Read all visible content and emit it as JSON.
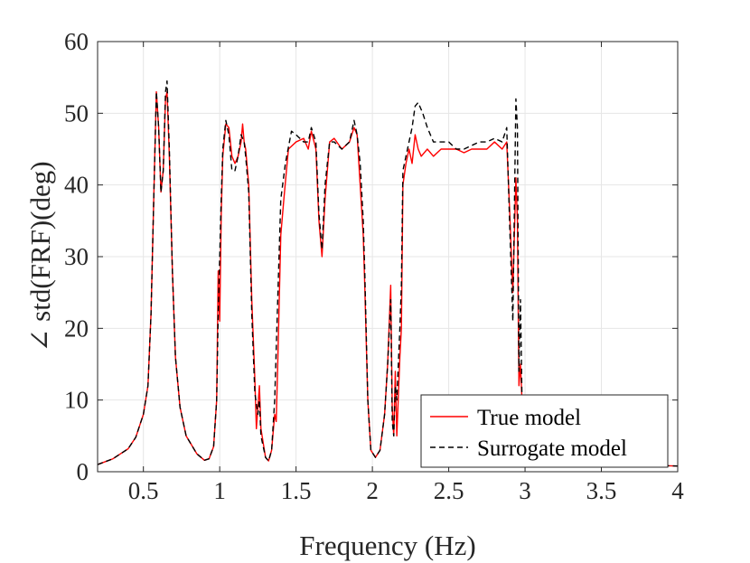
{
  "chart_data": {
    "type": "line",
    "title": "",
    "xlabel": "Frequency (Hz)",
    "ylabel": "∠ std(FRF)(deg)",
    "xlim": [
      0.2,
      4
    ],
    "ylim": [
      0,
      60
    ],
    "grid": true,
    "legend_position": "bottom-right",
    "x_ticks": [
      0.5,
      1,
      1.5,
      2,
      2.5,
      3,
      3.5,
      4
    ],
    "x_tick_labels": [
      "0.5",
      "1",
      "1.5",
      "2",
      "2.5",
      "3",
      "3.5",
      "4"
    ],
    "y_ticks": [
      0,
      10,
      20,
      30,
      40,
      50,
      60
    ],
    "y_tick_labels": [
      "0",
      "10",
      "20",
      "30",
      "40",
      "50",
      "60"
    ],
    "series": [
      {
        "name": "True model",
        "color": "#ff0000",
        "dash": "solid",
        "points": [
          [
            0.2,
            1.0
          ],
          [
            0.3,
            1.8
          ],
          [
            0.4,
            3.2
          ],
          [
            0.45,
            4.8
          ],
          [
            0.5,
            8
          ],
          [
            0.53,
            12
          ],
          [
            0.55,
            22
          ],
          [
            0.57,
            40
          ],
          [
            0.585,
            53
          ],
          [
            0.6,
            48
          ],
          [
            0.615,
            39
          ],
          [
            0.63,
            42
          ],
          [
            0.645,
            52
          ],
          [
            0.655,
            53
          ],
          [
            0.67,
            44
          ],
          [
            0.69,
            28
          ],
          [
            0.71,
            16
          ],
          [
            0.74,
            9
          ],
          [
            0.78,
            5
          ],
          [
            0.85,
            2.5
          ],
          [
            0.9,
            1.6
          ],
          [
            0.93,
            1.8
          ],
          [
            0.96,
            3.5
          ],
          [
            0.98,
            10
          ],
          [
            0.99,
            28
          ],
          [
            1.0,
            21
          ],
          [
            1.01,
            36
          ],
          [
            1.02,
            44
          ],
          [
            1.04,
            48.5
          ],
          [
            1.06,
            48
          ],
          [
            1.08,
            44
          ],
          [
            1.1,
            43
          ],
          [
            1.12,
            44
          ],
          [
            1.14,
            46
          ],
          [
            1.15,
            48.5
          ],
          [
            1.16,
            46
          ],
          [
            1.17,
            45
          ],
          [
            1.19,
            40
          ],
          [
            1.21,
            24
          ],
          [
            1.23,
            13
          ],
          [
            1.24,
            6
          ],
          [
            1.25,
            9
          ],
          [
            1.26,
            12
          ],
          [
            1.27,
            6
          ],
          [
            1.3,
            2
          ],
          [
            1.32,
            1.5
          ],
          [
            1.34,
            3
          ],
          [
            1.36,
            8
          ],
          [
            1.37,
            7
          ],
          [
            1.38,
            15
          ],
          [
            1.4,
            33
          ],
          [
            1.42,
            38
          ],
          [
            1.45,
            45
          ],
          [
            1.5,
            46
          ],
          [
            1.55,
            46.5
          ],
          [
            1.58,
            45
          ],
          [
            1.6,
            47.5
          ],
          [
            1.63,
            45
          ],
          [
            1.65,
            35
          ],
          [
            1.67,
            30
          ],
          [
            1.69,
            38
          ],
          [
            1.72,
            46
          ],
          [
            1.75,
            46.5
          ],
          [
            1.8,
            45
          ],
          [
            1.85,
            46
          ],
          [
            1.88,
            48
          ],
          [
            1.9,
            47
          ],
          [
            1.92,
            40
          ],
          [
            1.94,
            33
          ],
          [
            1.95,
            26
          ],
          [
            1.97,
            10
          ],
          [
            1.99,
            3
          ],
          [
            2.02,
            2
          ],
          [
            2.05,
            3
          ],
          [
            2.08,
            8
          ],
          [
            2.1,
            15
          ],
          [
            2.12,
            26
          ],
          [
            2.13,
            9
          ],
          [
            2.14,
            5
          ],
          [
            2.15,
            14
          ],
          [
            2.16,
            5
          ],
          [
            2.18,
            16
          ],
          [
            2.19,
            20
          ],
          [
            2.2,
            40
          ],
          [
            2.22,
            43
          ],
          [
            2.24,
            45
          ],
          [
            2.26,
            43
          ],
          [
            2.28,
            47
          ],
          [
            2.3,
            45
          ],
          [
            2.32,
            44
          ],
          [
            2.36,
            45
          ],
          [
            2.4,
            44
          ],
          [
            2.45,
            45
          ],
          [
            2.5,
            45
          ],
          [
            2.55,
            45
          ],
          [
            2.6,
            44.5
          ],
          [
            2.65,
            45
          ],
          [
            2.7,
            45
          ],
          [
            2.75,
            45
          ],
          [
            2.8,
            46
          ],
          [
            2.85,
            45
          ],
          [
            2.88,
            46
          ],
          [
            2.9,
            36
          ],
          [
            2.92,
            25
          ],
          [
            2.94,
            41
          ],
          [
            2.95,
            35
          ],
          [
            2.96,
            12
          ],
          [
            2.97,
            15
          ],
          [
            2.98,
            10
          ]
        ]
      },
      {
        "name": "Surrogate model",
        "color": "#000000",
        "dash": "dashed",
        "points": [
          [
            0.2,
            1.0
          ],
          [
            0.3,
            1.8
          ],
          [
            0.4,
            3.2
          ],
          [
            0.45,
            4.8
          ],
          [
            0.5,
            8
          ],
          [
            0.53,
            12
          ],
          [
            0.55,
            22
          ],
          [
            0.57,
            40
          ],
          [
            0.585,
            53
          ],
          [
            0.6,
            48
          ],
          [
            0.615,
            39
          ],
          [
            0.63,
            42
          ],
          [
            0.645,
            53
          ],
          [
            0.655,
            54.5
          ],
          [
            0.67,
            45
          ],
          [
            0.69,
            28
          ],
          [
            0.71,
            16
          ],
          [
            0.74,
            9
          ],
          [
            0.78,
            5
          ],
          [
            0.85,
            2.5
          ],
          [
            0.9,
            1.6
          ],
          [
            0.93,
            1.8
          ],
          [
            0.96,
            3.5
          ],
          [
            0.98,
            10
          ],
          [
            0.99,
            22
          ],
          [
            1.0,
            30
          ],
          [
            1.01,
            38
          ],
          [
            1.02,
            45
          ],
          [
            1.04,
            49
          ],
          [
            1.06,
            47
          ],
          [
            1.08,
            42
          ],
          [
            1.1,
            42
          ],
          [
            1.12,
            44
          ],
          [
            1.14,
            47
          ],
          [
            1.16,
            46
          ],
          [
            1.17,
            44
          ],
          [
            1.19,
            39
          ],
          [
            1.21,
            22
          ],
          [
            1.23,
            11
          ],
          [
            1.25,
            8
          ],
          [
            1.26,
            10
          ],
          [
            1.27,
            5
          ],
          [
            1.3,
            2
          ],
          [
            1.32,
            1.5
          ],
          [
            1.34,
            3
          ],
          [
            1.36,
            10
          ],
          [
            1.37,
            17
          ],
          [
            1.38,
            24
          ],
          [
            1.4,
            38
          ],
          [
            1.43,
            43
          ],
          [
            1.47,
            47.5
          ],
          [
            1.5,
            47
          ],
          [
            1.55,
            46
          ],
          [
            1.58,
            46
          ],
          [
            1.6,
            48
          ],
          [
            1.63,
            46
          ],
          [
            1.65,
            36
          ],
          [
            1.67,
            31
          ],
          [
            1.69,
            40
          ],
          [
            1.72,
            46
          ],
          [
            1.75,
            46
          ],
          [
            1.8,
            45
          ],
          [
            1.85,
            46
          ],
          [
            1.88,
            49
          ],
          [
            1.9,
            47
          ],
          [
            1.92,
            43
          ],
          [
            1.94,
            35
          ],
          [
            1.95,
            28
          ],
          [
            1.97,
            10
          ],
          [
            1.99,
            3
          ],
          [
            2.02,
            2
          ],
          [
            2.05,
            3
          ],
          [
            2.08,
            8
          ],
          [
            2.1,
            15
          ],
          [
            2.12,
            24
          ],
          [
            2.13,
            7
          ],
          [
            2.14,
            5
          ],
          [
            2.15,
            12
          ],
          [
            2.16,
            10
          ],
          [
            2.18,
            20
          ],
          [
            2.19,
            26
          ],
          [
            2.2,
            42
          ],
          [
            2.22,
            44
          ],
          [
            2.24,
            46
          ],
          [
            2.26,
            48
          ],
          [
            2.28,
            51
          ],
          [
            2.3,
            51.5
          ],
          [
            2.33,
            50
          ],
          [
            2.36,
            48
          ],
          [
            2.4,
            46
          ],
          [
            2.45,
            46
          ],
          [
            2.5,
            46
          ],
          [
            2.55,
            45
          ],
          [
            2.6,
            45
          ],
          [
            2.65,
            45.5
          ],
          [
            2.7,
            46
          ],
          [
            2.75,
            46
          ],
          [
            2.8,
            46.5
          ],
          [
            2.85,
            46
          ],
          [
            2.88,
            48
          ],
          [
            2.9,
            34
          ],
          [
            2.92,
            21
          ],
          [
            2.94,
            52
          ],
          [
            2.95,
            48
          ],
          [
            2.96,
            14
          ],
          [
            2.97,
            24
          ],
          [
            2.98,
            10
          ]
        ]
      }
    ]
  }
}
